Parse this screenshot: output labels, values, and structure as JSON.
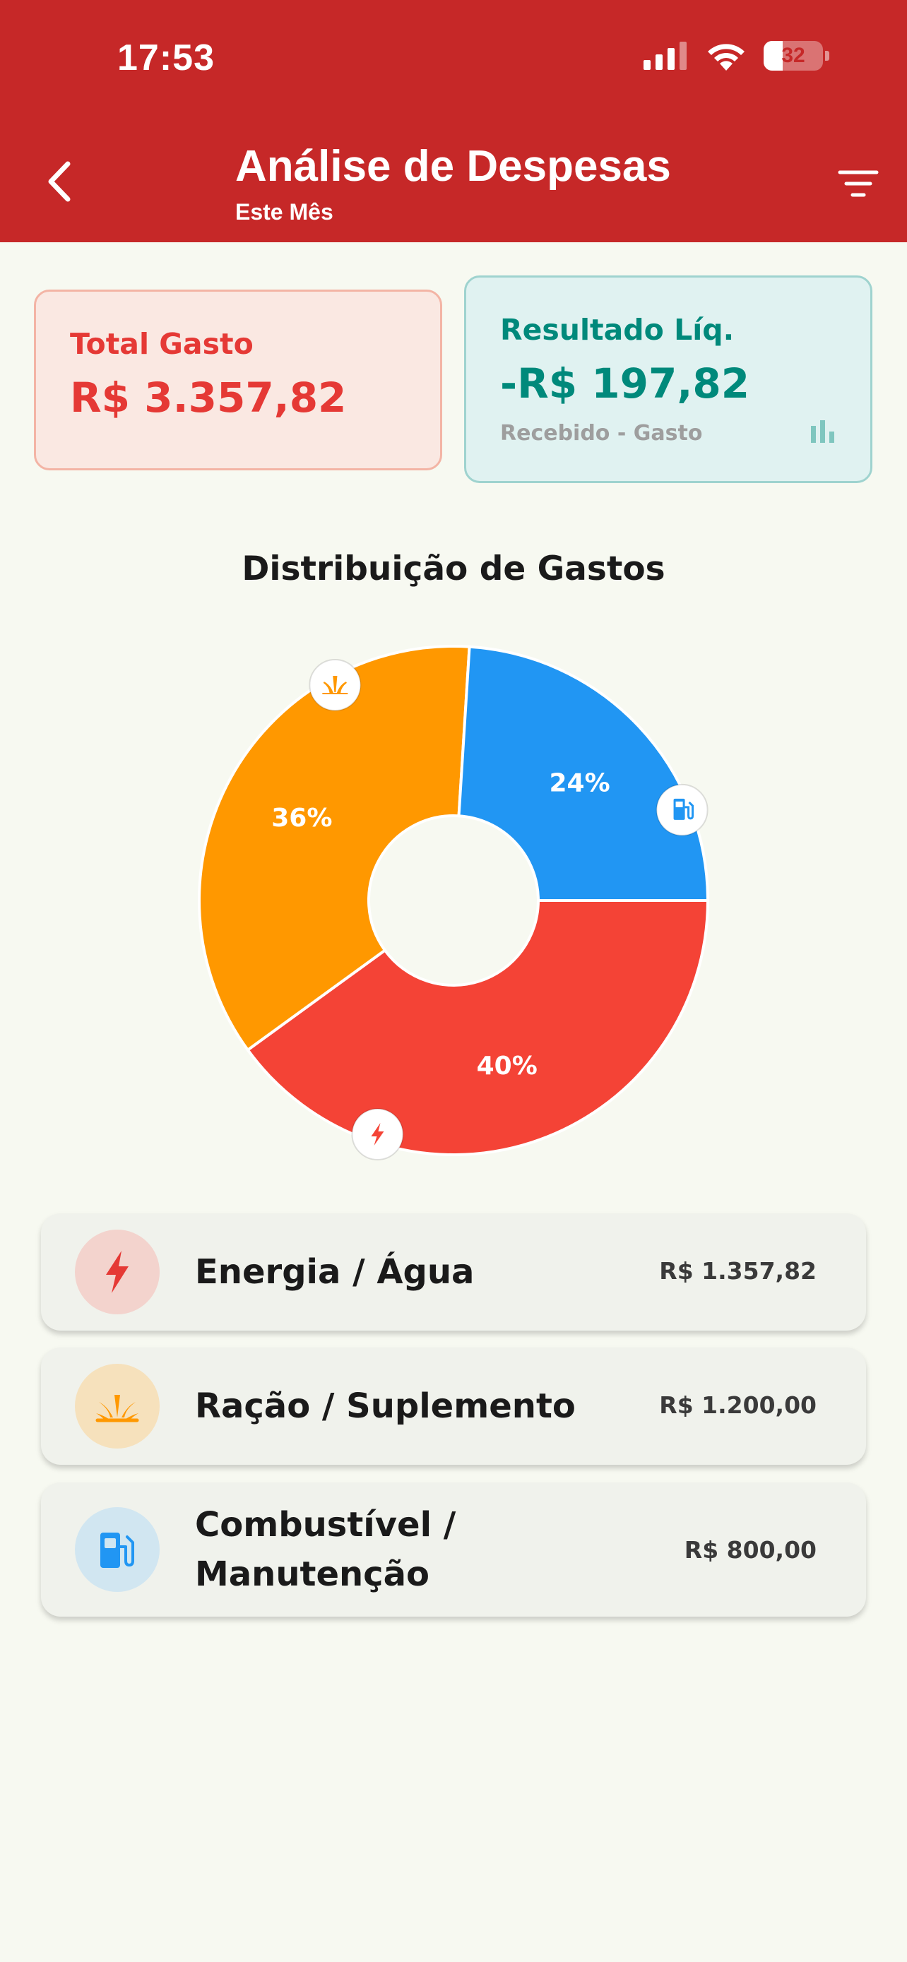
{
  "status_bar": {
    "time": "17:53",
    "battery": "32"
  },
  "header": {
    "title": "Análise de Despesas",
    "subtitle": "Este Mês",
    "back_icon": "chevron-left-icon",
    "filter_icon": "filter-icon",
    "background_color": "#c62828"
  },
  "summary": {
    "total": {
      "label": "Total Gasto",
      "value": "R$ 3.357,82",
      "color": "#e53935"
    },
    "result": {
      "label": "Resultado Líq.",
      "value": "-R$ 197,82",
      "note": "Recebido - Gasto",
      "icon": "bar-chart-icon",
      "color": "#00897b"
    }
  },
  "chart_title": "Distribuição de Gastos",
  "chart_data": {
    "type": "pie",
    "title": "Distribuição de Gastos",
    "donut": true,
    "slices": [
      {
        "name": "Energia / Água",
        "percent": 40,
        "label": "40%",
        "color": "#f44336",
        "icon": "bolt-icon"
      },
      {
        "name": "Ração / Suplemento",
        "percent": 36,
        "label": "36%",
        "color": "#ff9800",
        "icon": "grass-icon"
      },
      {
        "name": "Combustível / Manutenção",
        "percent": 24,
        "label": "24%",
        "color": "#2196f3",
        "icon": "gas-station-icon"
      }
    ]
  },
  "categories": [
    {
      "name": "Energia / Água",
      "value": "R$ 1.357,82",
      "icon": "bolt-icon",
      "color": "#e53935",
      "bg": "#f3d3cd"
    },
    {
      "name": "Ração / Suplemento",
      "value": "R$ 1.200,00",
      "icon": "grass-icon",
      "color": "#ff9800",
      "bg": "#f6e1bc"
    },
    {
      "name_line1": "Combustível /",
      "name_line2": "Manutenção",
      "value": "R$ 800,00",
      "icon": "gas-station-icon",
      "color": "#2196f3",
      "bg": "#d1e6f1"
    }
  ]
}
